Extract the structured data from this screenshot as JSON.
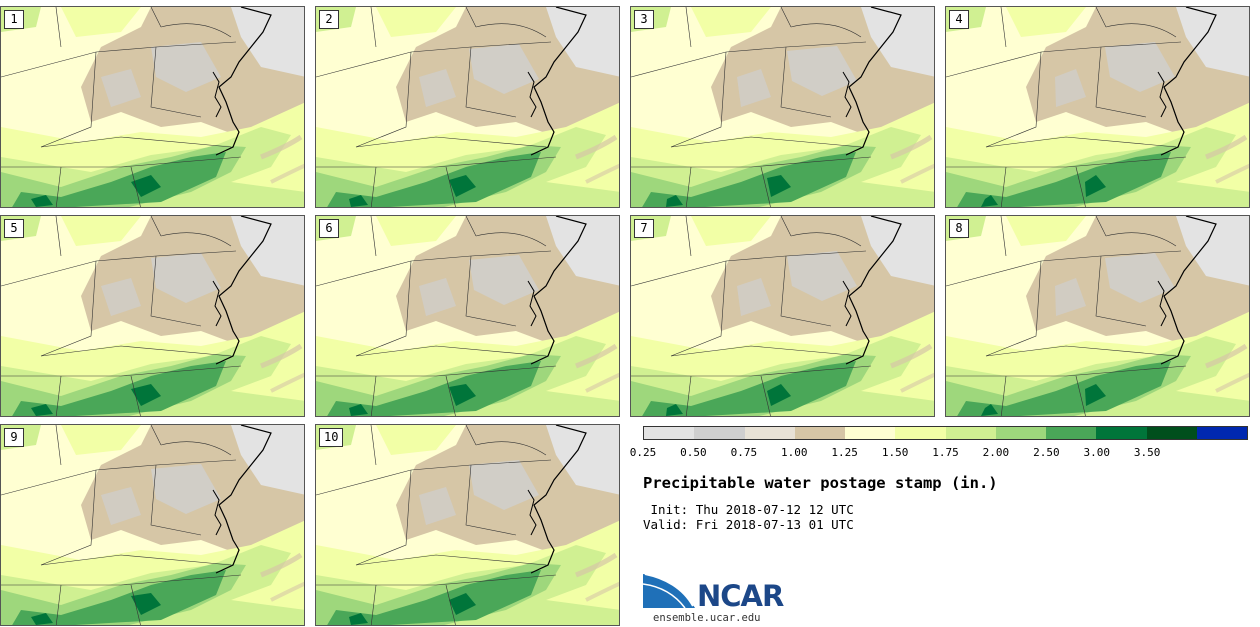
{
  "figure": {
    "title": "Precipitable water postage stamp (in.)",
    "init_label": " Init:",
    "init_value": "Thu 2018-07-12 12 UTC",
    "valid_label": "Valid:",
    "valid_value": "Fri 2018-07-13 01 UTC"
  },
  "members": [
    "1",
    "2",
    "3",
    "4",
    "5",
    "6",
    "7",
    "8",
    "9",
    "10"
  ],
  "colorbar": {
    "ticks": [
      "0.25",
      "0.50",
      "0.75",
      "1.00",
      "1.25",
      "1.50",
      "1.75",
      "2.00",
      "2.50",
      "3.00",
      "3.50"
    ],
    "colors": [
      "#e3e3e3",
      "#cfcfcf",
      "#e8e2d6",
      "#d6c6a6",
      "#ffffd2",
      "#f2ffa6",
      "#d0f092",
      "#9ed77c",
      "#4aa758",
      "#00753a",
      "#004f1c",
      "#0028b0"
    ]
  },
  "logo": {
    "text": "NCAR",
    "url": "ensemble.ucar.edu",
    "colors": {
      "brand": "#1c4788",
      "swoosh": "#1f70b8"
    }
  }
}
